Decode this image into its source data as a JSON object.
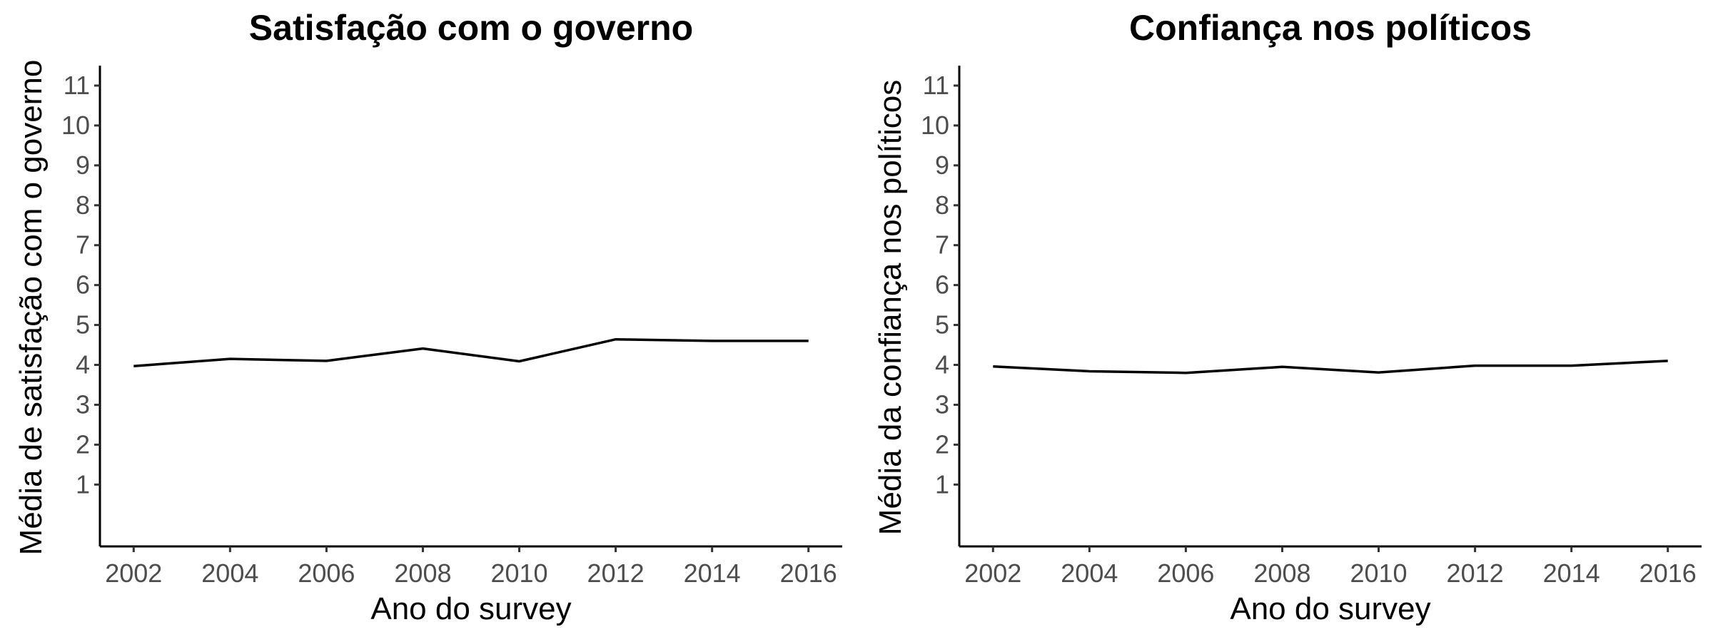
{
  "chart_data": [
    {
      "type": "line",
      "title": "Satisfação com o governo",
      "xlabel": "Ano do survey",
      "ylabel": "Média de satisfação com o governo",
      "x": [
        2002,
        2004,
        2006,
        2008,
        2010,
        2012,
        2014,
        2016
      ],
      "x_ticks": [
        "2002",
        "2004",
        "2006",
        "2008",
        "2010",
        "2012",
        "2014",
        "2016"
      ],
      "y_ticks": [
        "1",
        "2",
        "3",
        "4",
        "5",
        "6",
        "7",
        "8",
        "9",
        "10",
        "11"
      ],
      "xlim": [
        2001.3,
        2016.7
      ],
      "ylim": [
        -0.55,
        11.5
      ],
      "series": [
        {
          "values": [
            3.97,
            4.15,
            4.1,
            4.41,
            4.09,
            4.64,
            4.6,
            4.6
          ]
        }
      ],
      "grid": false,
      "line_color": "#000000"
    },
    {
      "type": "line",
      "title": "Confiança nos políticos",
      "xlabel": "Ano do survey",
      "ylabel": "Média da confiança nos políticos",
      "x": [
        2002,
        2004,
        2006,
        2008,
        2010,
        2012,
        2014,
        2016
      ],
      "x_ticks": [
        "2002",
        "2004",
        "2006",
        "2008",
        "2010",
        "2012",
        "2014",
        "2016"
      ],
      "y_ticks": [
        "1",
        "2",
        "3",
        "4",
        "5",
        "6",
        "7",
        "8",
        "9",
        "10",
        "11"
      ],
      "xlim": [
        2001.3,
        2016.7
      ],
      "ylim": [
        -0.55,
        11.5
      ],
      "series": [
        {
          "values": [
            3.96,
            3.84,
            3.8,
            3.95,
            3.81,
            3.98,
            3.98,
            4.1
          ]
        }
      ],
      "grid": false,
      "line_color": "#000000"
    }
  ]
}
